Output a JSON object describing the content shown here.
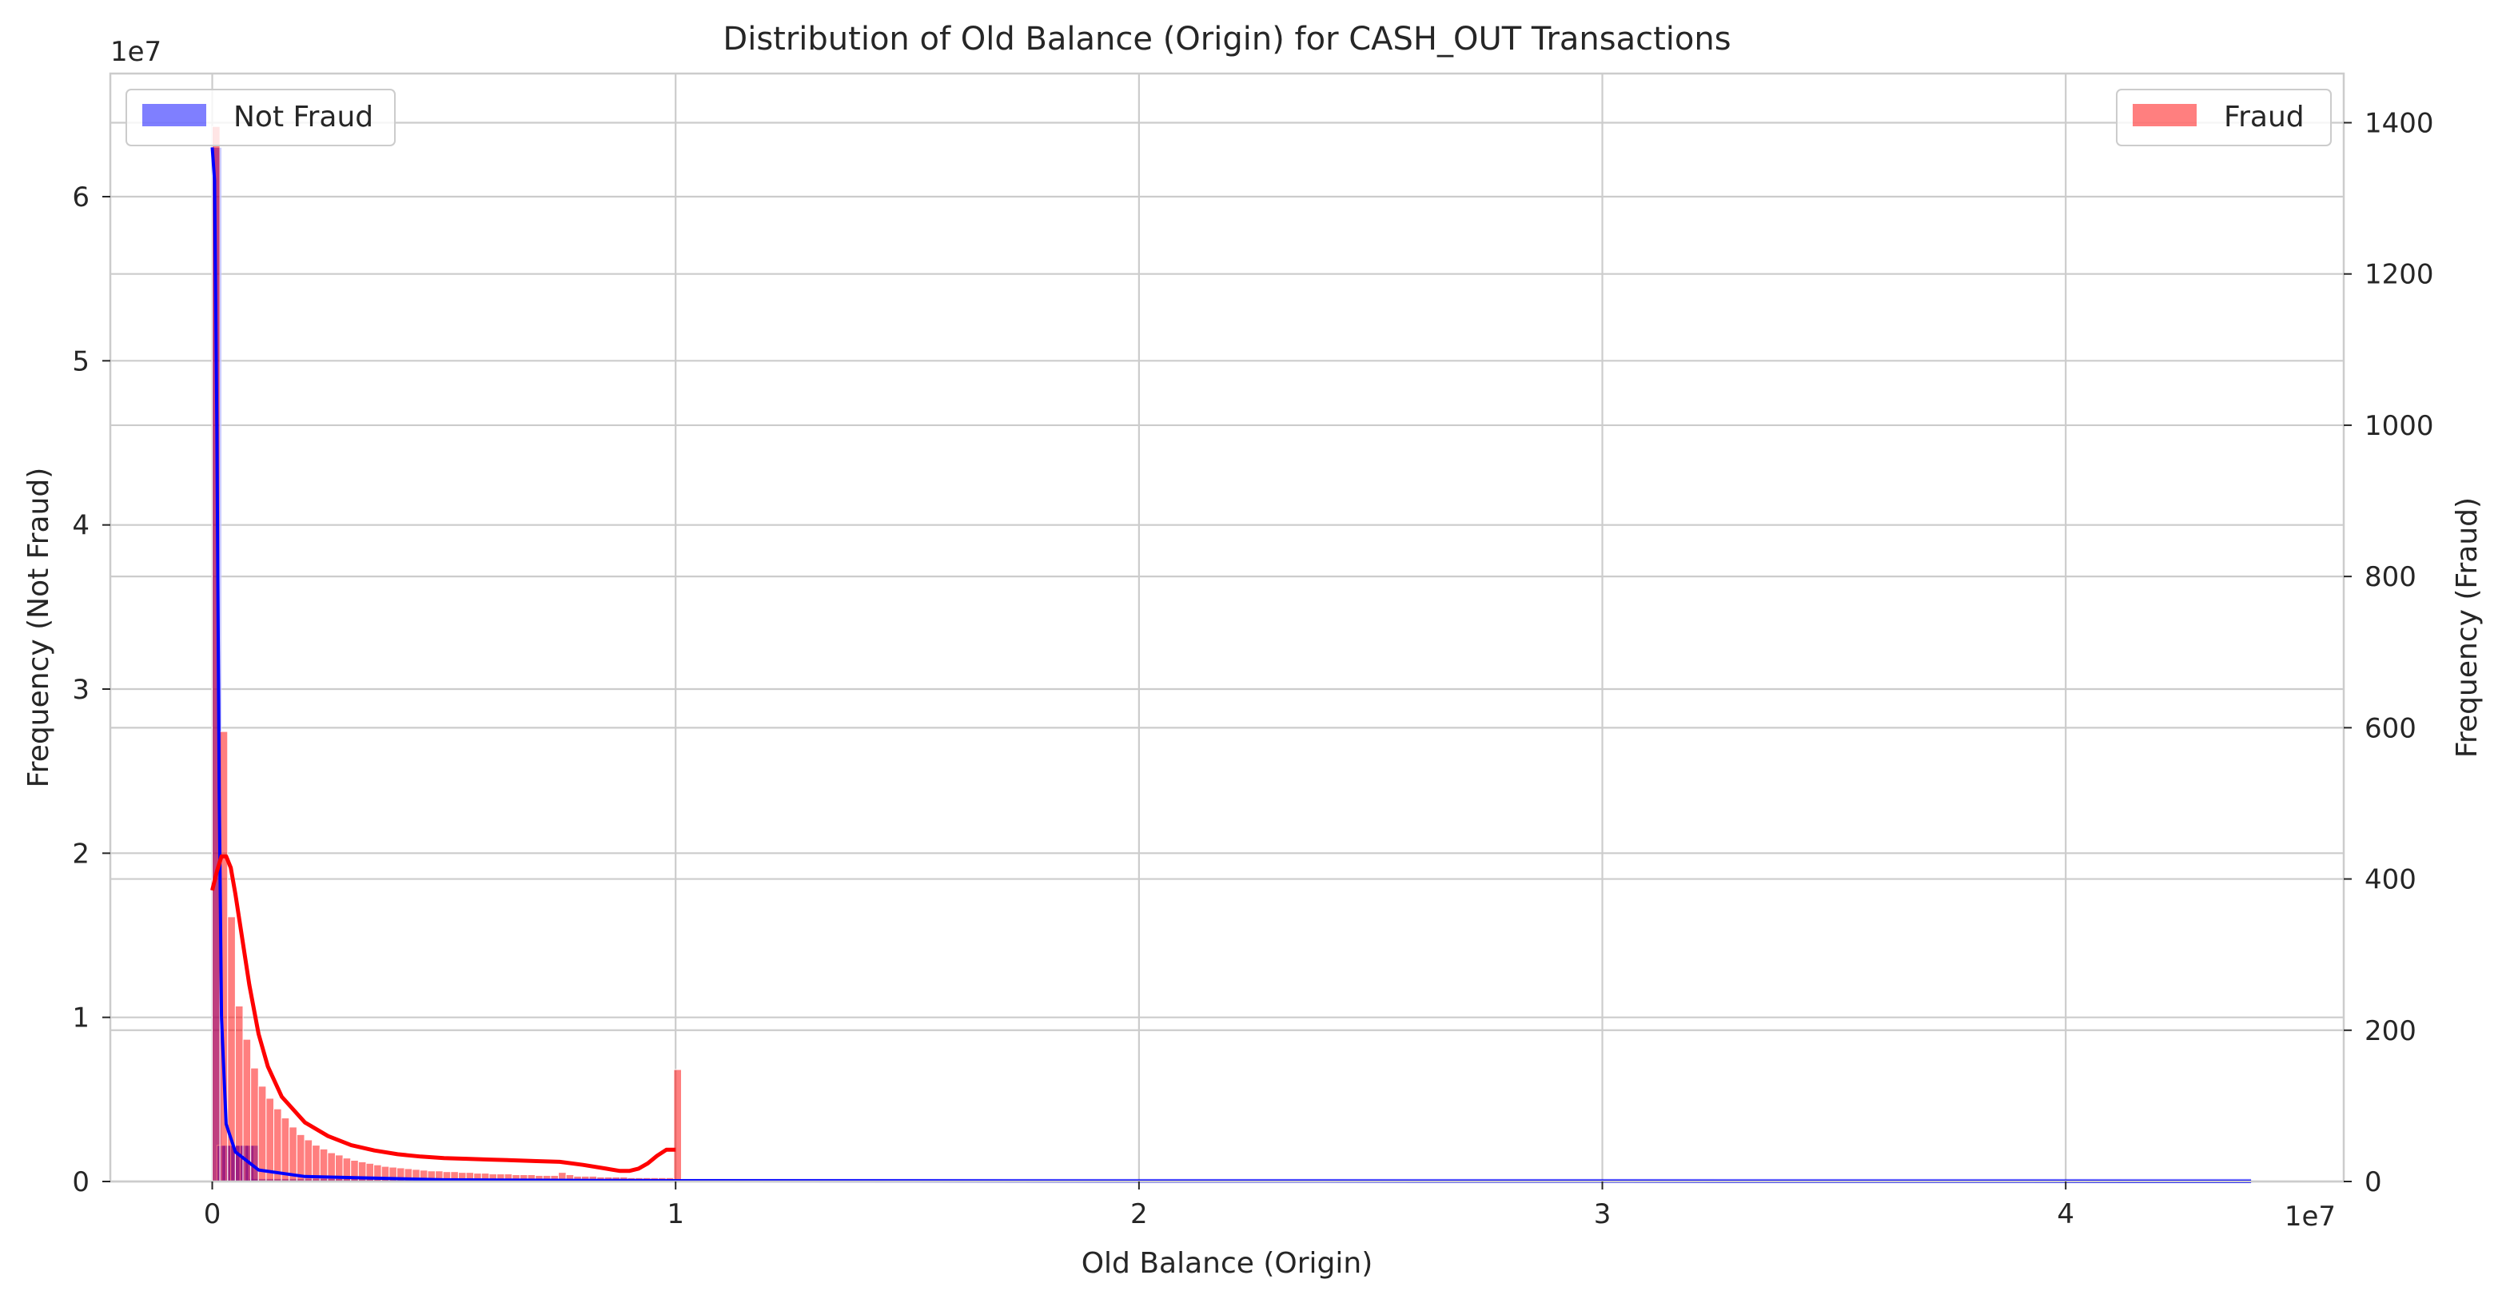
{
  "chart_data": {
    "type": "bar",
    "title": "Distribution of Old Balance (Origin) for CASH_OUT Transactions",
    "xlabel": "Old Balance (Origin)",
    "ylabel_left": "Frequency (Not Fraud)",
    "ylabel_right": "Frequency (Fraud)",
    "x_offset_label": "1e7",
    "y_left_offset_label": "1e7",
    "xlim": [
      -0.22,
      4.6
    ],
    "x_ticks": [
      0,
      1,
      2,
      3,
      4
    ],
    "x_tick_labels": [
      "0",
      "1",
      "2",
      "3",
      "4"
    ],
    "ylim_left": [
      0,
      6.75
    ],
    "y_left_ticks": [
      0,
      1,
      2,
      3,
      4,
      5,
      6
    ],
    "y_left_tick_labels": [
      "0",
      "1",
      "2",
      "3",
      "4",
      "5",
      "6"
    ],
    "ylim_right": [
      0,
      1465
    ],
    "y_right_ticks": [
      0,
      200,
      400,
      600,
      800,
      1000,
      1200,
      1400
    ],
    "y_right_tick_labels": [
      "0",
      "200",
      "400",
      "600",
      "800",
      "1000",
      "1200",
      "1400"
    ],
    "grid": true,
    "colors": {
      "not_fraud": "#0000ff",
      "fraud": "#ff0000",
      "grid": "#cccccc"
    },
    "series": [
      {
        "name": "Not Fraud",
        "axis": "left",
        "unit_note": "counts in units of 1e7 (left axis)",
        "bin_width": 0.0195,
        "bins_x": [
          0.0,
          0.01,
          0.02,
          0.03,
          0.04,
          0.05,
          0.06,
          0.07,
          0.08
        ],
        "bins_y": [
          6.3,
          0.22,
          0.22,
          0.22,
          0.22,
          0.22,
          0.22,
          0.22,
          0.22
        ],
        "tail": {
          "x_start": 0.08,
          "x_end": 4.4,
          "y": 0.008
        },
        "kde_x": [
          0.0,
          0.005,
          0.01,
          0.015,
          0.02,
          0.03,
          0.05,
          0.1,
          0.2,
          0.5,
          1.0,
          2.0,
          3.0,
          4.4
        ],
        "kde_y": [
          6.3,
          6.1,
          4.6,
          2.4,
          1.0,
          0.35,
          0.18,
          0.07,
          0.03,
          0.01,
          0.005,
          0.002,
          0.001,
          0.0
        ]
      },
      {
        "name": "Fraud",
        "axis": "right",
        "bin_width": 0.0166,
        "bins_x": [
          0.0,
          0.0166,
          0.0332,
          0.0498,
          0.0664,
          0.083,
          0.0996,
          0.1162,
          0.1328,
          0.1494,
          0.166,
          0.1826,
          0.1992,
          0.2158,
          0.2324,
          0.249,
          0.2656,
          0.2822,
          0.2988,
          0.3154,
          0.332,
          0.3486,
          0.3652,
          0.3818,
          0.3984,
          0.415,
          0.4316,
          0.4482,
          0.4648,
          0.4814,
          0.498,
          0.5146,
          0.5312,
          0.5478,
          0.5644,
          0.581,
          0.5976,
          0.6142,
          0.6308,
          0.6474,
          0.664,
          0.6806,
          0.6972,
          0.7138,
          0.7304,
          0.747,
          0.7636,
          0.7802,
          0.7968,
          0.8134,
          0.83,
          0.8466,
          0.8632,
          0.8798,
          0.8964,
          0.913,
          0.9296,
          0.9462,
          0.9628,
          0.9794,
          0.996
        ],
        "bins_y": [
          1395,
          595,
          350,
          232,
          188,
          150,
          126,
          110,
          96,
          84,
          72,
          62,
          55,
          48,
          43,
          38,
          35,
          31,
          28,
          26,
          24,
          22,
          20,
          19,
          18,
          17,
          16,
          15,
          14,
          14,
          13,
          13,
          12,
          12,
          11,
          11,
          10,
          10,
          10,
          9,
          9,
          9,
          8,
          8,
          8,
          12,
          9,
          7,
          7,
          7,
          6,
          6,
          6,
          6,
          5,
          5,
          5,
          5,
          5,
          5,
          148
        ],
        "kde_x": [
          0.0,
          0.01,
          0.02,
          0.03,
          0.04,
          0.05,
          0.06,
          0.08,
          0.1,
          0.12,
          0.15,
          0.2,
          0.25,
          0.3,
          0.35,
          0.4,
          0.45,
          0.5,
          0.55,
          0.6,
          0.65,
          0.7,
          0.75,
          0.8,
          0.85,
          0.88,
          0.9,
          0.92,
          0.94,
          0.96,
          0.98,
          1.0
        ],
        "kde_y": [
          385,
          410,
          430,
          430,
          415,
          380,
          340,
          260,
          195,
          152,
          112,
          78,
          60,
          48,
          41,
          36,
          33,
          31,
          30,
          29,
          28,
          27,
          26,
          22,
          17,
          14,
          14,
          17,
          24,
          34,
          42,
          42
        ]
      }
    ],
    "legends": [
      {
        "series": "Not Fraud",
        "placement": "upper-left"
      },
      {
        "series": "Fraud",
        "placement": "upper-right"
      }
    ]
  }
}
